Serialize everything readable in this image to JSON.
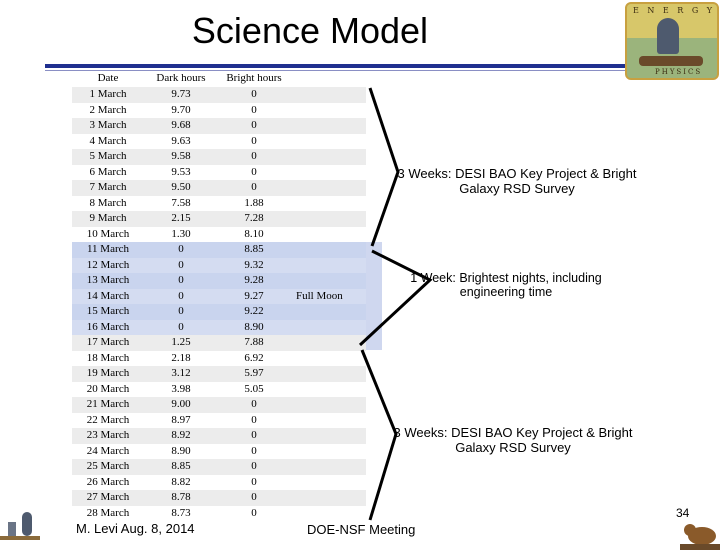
{
  "title": "Science Model",
  "table": {
    "headers": [
      "Date",
      "Dark hours",
      "Bright hours"
    ],
    "rows": [
      [
        "1 March",
        "9.73",
        "0"
      ],
      [
        "2 March",
        "9.70",
        "0"
      ],
      [
        "3 March",
        "9.68",
        "0"
      ],
      [
        "4 March",
        "9.63",
        "0"
      ],
      [
        "5 March",
        "9.58",
        "0"
      ],
      [
        "6 March",
        "9.53",
        "0"
      ],
      [
        "7 March",
        "9.50",
        "0"
      ],
      [
        "8 March",
        "7.58",
        "1.88"
      ],
      [
        "9 March",
        "2.15",
        "7.28"
      ],
      [
        "10 March",
        "1.30",
        "8.10"
      ],
      [
        "11 March",
        "0",
        "8.85"
      ],
      [
        "12 March",
        "0",
        "9.32"
      ],
      [
        "13 March",
        "0",
        "9.28"
      ],
      [
        "14 March",
        "0",
        "9.27"
      ],
      [
        "15 March",
        "0",
        "9.22"
      ],
      [
        "16 March",
        "0",
        "8.90"
      ],
      [
        "17 March",
        "1.25",
        "7.88"
      ],
      [
        "18 March",
        "2.18",
        "6.92"
      ],
      [
        "19 March",
        "3.12",
        "5.97"
      ],
      [
        "20 March",
        "3.98",
        "5.05"
      ],
      [
        "21 March",
        "9.00",
        "0"
      ],
      [
        "22 March",
        "8.97",
        "0"
      ],
      [
        "23 March",
        "8.92",
        "0"
      ],
      [
        "24 March",
        "8.90",
        "0"
      ],
      [
        "25 March",
        "8.85",
        "0"
      ],
      [
        "26 March",
        "8.82",
        "0"
      ],
      [
        "27 March",
        "8.78",
        "0"
      ],
      [
        "28 March",
        "8.73",
        "0"
      ]
    ],
    "moon_rows_start": 10,
    "moon_rows_end": 15
  },
  "full_moon_label": "Full Moon",
  "annotations": {
    "first": "3 Weeks: DESI BAO Key Project & Bright Galaxy RSD Survey",
    "second": "1 Week: Brightest nights, including engineering time",
    "third": "3 Weeks: DESI BAO Key Project & Bright Galaxy RSD Survey"
  },
  "footer": {
    "left": "M. Levi Aug. 8, 2014",
    "middle": "DOE-NSF Meeting",
    "page_number": "34"
  },
  "logo": {
    "top_text": "E N E R G Y",
    "bottom_text": "PHYSICS"
  },
  "colors": {
    "title_rule": "#1f2f8f",
    "moon_highlight": "#c9d4ee",
    "row_stripe": "#ececec"
  }
}
